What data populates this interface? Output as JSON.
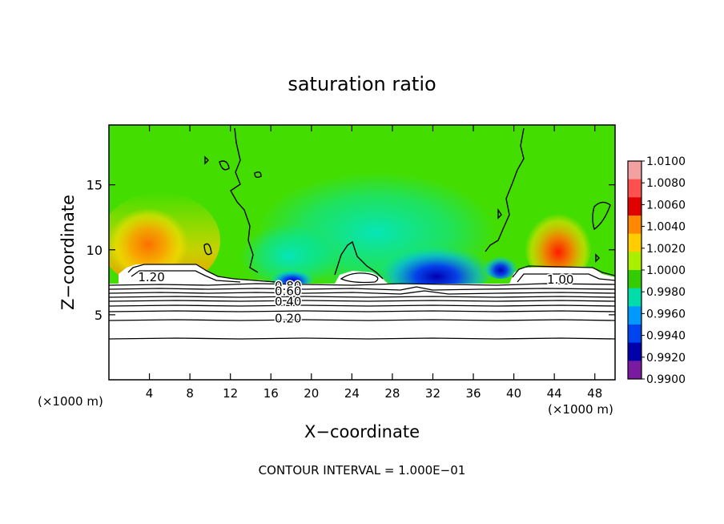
{
  "chart_data": {
    "type": "heatmap",
    "title": "saturation ratio",
    "xlabel": "X−coordinate",
    "ylabel": "Z−coordinate",
    "x_unit": "(×1000 m)",
    "x_unit_right": "(×1000 m)",
    "xlim": [
      0,
      50
    ],
    "ylim": [
      0,
      19.6
    ],
    "x_ticks": [
      4,
      8,
      12,
      16,
      20,
      24,
      28,
      32,
      36,
      40,
      44,
      48
    ],
    "y_ticks": [
      5,
      10,
      15
    ],
    "colorbar": {
      "range": [
        0.99,
        1.01
      ],
      "labels": [
        "1.0100",
        "1.0080",
        "1.0060",
        "1.0040",
        "1.0020",
        "1.0000",
        "0.9980",
        "0.9960",
        "0.9940",
        "0.9920",
        "0.9900"
      ],
      "colors": [
        "#f2a0a0",
        "#ff5050",
        "#e00000",
        "#ff8800",
        "#ffcc00",
        "#aaee00",
        "#33cc00",
        "#00ddaa",
        "#0099ff",
        "#0044ee",
        "#0000aa",
        "#7a1aa0"
      ]
    },
    "contour_labels": [
      {
        "text": "1.20",
        "x": 4.2,
        "z": 7.9
      },
      {
        "text": "1.00",
        "x": 44.6,
        "z": 7.7
      },
      {
        "text": "0.80",
        "x": 17.7,
        "z": 7.2
      },
      {
        "text": "0.60",
        "x": 17.7,
        "z": 6.8
      },
      {
        "text": "0.40",
        "x": 17.7,
        "z": 6.0
      },
      {
        "text": "0.20",
        "x": 17.7,
        "z": 4.7
      }
    ],
    "footer": "CONTOUR INTERVAL = 1.000E−01"
  }
}
